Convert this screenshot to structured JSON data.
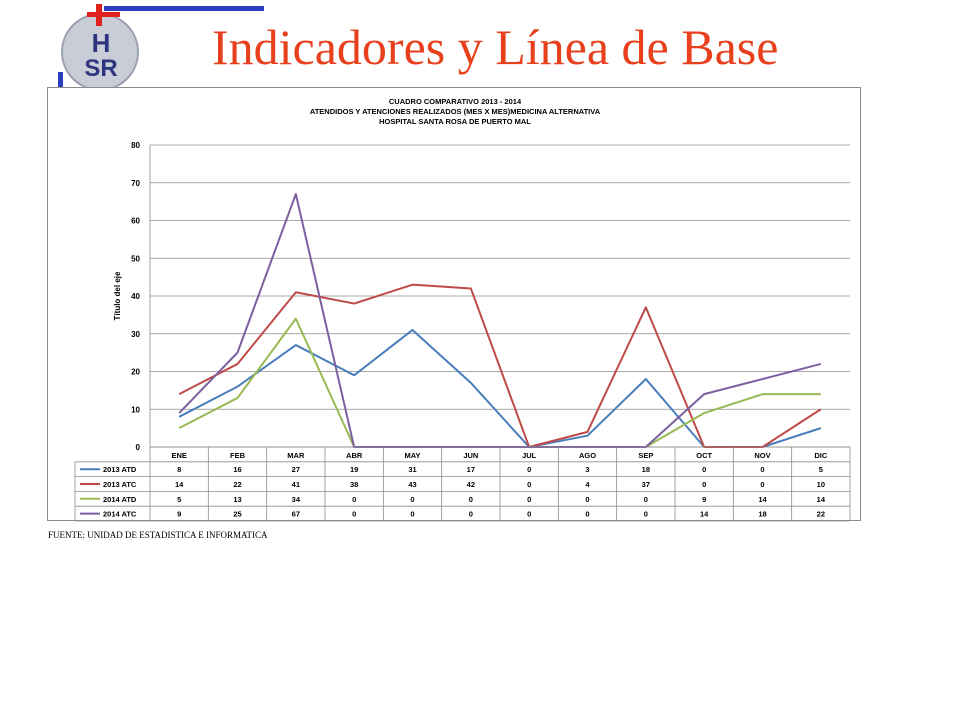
{
  "page": {
    "title": "Indicadores y Línea de Base",
    "logo_text": "HSR",
    "source_note": "FUENTE: UNIDAD DE ESTADISTICA E INFORMATICA"
  },
  "colors": {
    "title": "#e8401c",
    "series": [
      "#4a7ebb",
      "#be4b48",
      "#98b954",
      "#7d5fa0"
    ]
  },
  "chart_data": {
    "type": "line",
    "title_lines": [
      "CUADRO COMPARATIVO 2013 - 2014",
      "ATENDIDOS Y ATENCIONES  REALIZADOS (MES X MES)MEDICINA ALTERNATIVA",
      "HOSPITAL SANTA ROSA DE PUERTO MAL"
    ],
    "ylabel": "Título del eje",
    "ylim": [
      0,
      80
    ],
    "yticks": [
      0,
      10,
      20,
      30,
      40,
      50,
      60,
      70,
      80
    ],
    "grid": true,
    "legend": "data-table",
    "categories": [
      "ENE",
      "FEB",
      "MAR",
      "ABR",
      "MAY",
      "JUN",
      "JUL",
      "AGO",
      "SEP",
      "OCT",
      "NOV",
      "DIC"
    ],
    "series": [
      {
        "name": "2013 ATD",
        "values": [
          8,
          16,
          27,
          19,
          31,
          17,
          0,
          3,
          18,
          0,
          0,
          5
        ]
      },
      {
        "name": "2013 ATC",
        "values": [
          14,
          22,
          41,
          38,
          43,
          42,
          0,
          4,
          37,
          0,
          0,
          10
        ]
      },
      {
        "name": "2014 ATD",
        "values": [
          5,
          13,
          34,
          0,
          0,
          0,
          0,
          0,
          0,
          9,
          14,
          14
        ]
      },
      {
        "name": "2014 ATC",
        "values": [
          9,
          25,
          67,
          0,
          0,
          0,
          0,
          0,
          0,
          14,
          18,
          22
        ]
      }
    ]
  }
}
